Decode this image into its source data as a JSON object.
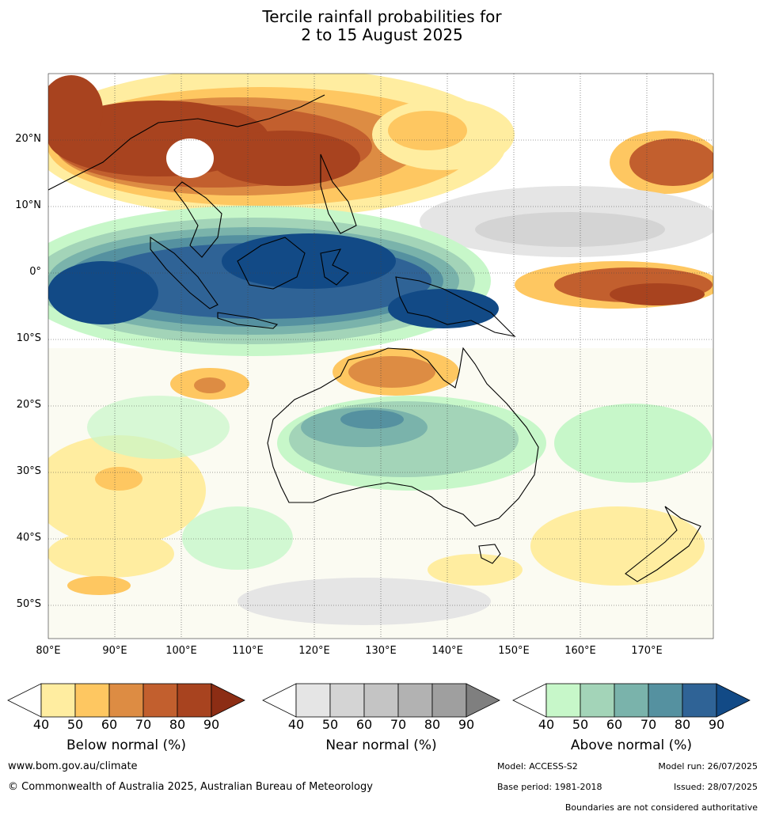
{
  "title_line1": "Tercile rainfall probabilities for",
  "title_line2": "2 to 15 August 2025",
  "lat_labels": [
    "20°N",
    "10°N",
    "0°",
    "10°S",
    "20°S",
    "30°S",
    "40°S",
    "50°S"
  ],
  "lon_labels": [
    "80°E",
    "90°E",
    "100°E",
    "110°E",
    "120°E",
    "130°E",
    "140°E",
    "150°E",
    "160°E",
    "170°E"
  ],
  "legends": [
    {
      "label": "Below normal (%)",
      "ticks": [
        "40",
        "50",
        "60",
        "70",
        "80",
        "90"
      ],
      "colors": [
        "#ffffff",
        "#ffeda0",
        "#fec761",
        "#dd8c43",
        "#c25f2e",
        "#a8431f",
        "#8c2d14"
      ]
    },
    {
      "label": "Near normal (%)",
      "ticks": [
        "40",
        "50",
        "60",
        "70",
        "80",
        "90"
      ],
      "colors": [
        "#ffffff",
        "#e5e5e5",
        "#d4d4d4",
        "#c4c4c4",
        "#b2b2b2",
        "#9f9f9f",
        "#7f7f7f"
      ]
    },
    {
      "label": "Above normal (%)",
      "ticks": [
        "40",
        "50",
        "60",
        "70",
        "80",
        "90"
      ],
      "colors": [
        "#ffffff",
        "#c7f7c9",
        "#a3d4b8",
        "#7ab3ab",
        "#5591a0",
        "#2f6396",
        "#124a86"
      ]
    }
  ],
  "footer": {
    "url": "www.bom.gov.au/climate",
    "copyright": "© Commonwealth of Australia 2025, Australian Bureau of Meteorology",
    "model": "Model: ACCESS-S2",
    "model_run": "Model run: 26/07/2025",
    "base_period": "Base period: 1981-2018",
    "issued": "Issued: 28/07/2025",
    "boundaries": "Boundaries are not considered authoritative"
  }
}
